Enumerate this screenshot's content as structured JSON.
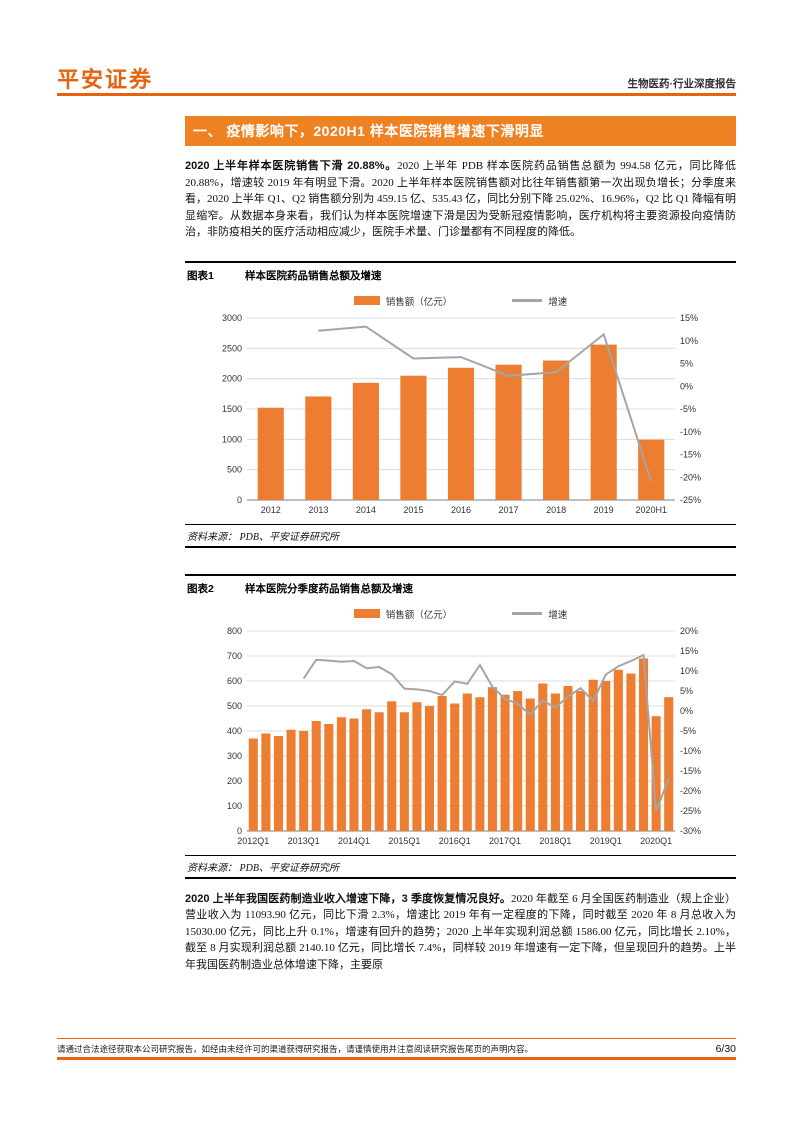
{
  "header": {
    "logo": "平安证券",
    "report_type": "生物医药·行业深度报告"
  },
  "section_title": "一、  疫情影响下，2020H1 样本医院销售增速下滑明显",
  "para1": {
    "lead": "2020 上半年样本医院销售下滑 20.88%。",
    "body": "2020 上半年 PDB 样本医院药品销售总额为 994.58 亿元，同比降低 20.88%，增速较 2019 年有明显下滑。2020 上半年样本医院销售额对比往年销售额第一次出现负增长；分季度来看，2020 上半年 Q1、Q2 销售额分别为 459.15 亿、535.43 亿，同比分别下降 25.02%、16.96%，Q2 比 Q1 降幅有明显缩窄。从数据本身来看，我们认为样本医院增速下滑是因为受新冠疫情影响，医疗机构将主要资源投向疫情防治，非防疫相关的医疗活动相应减少，医院手术量、门诊量都有不同程度的降低。"
  },
  "figure1": {
    "label": "图表1",
    "title": "样本医院药品销售总额及增速",
    "source": "资料来源： PDB、平安证券研究所"
  },
  "figure2": {
    "label": "图表2",
    "title": "样本医院分季度药品销售总额及增速",
    "source": "资料来源： PDB、平安证券研究所"
  },
  "para2": {
    "lead": "2020 上半年我国医药制造业收入增速下降，3 季度恢复情况良好。",
    "body": "2020 年截至 6 月全国医药制造业（规上企业）营业收入为 11093.90 亿元，同比下滑 2.3%，增速比 2019 年有一定程度的下降，同时截至 2020 年 8 月总收入为 15030.00 亿元，同比上升 0.1%，增速有回升的趋势；2020 上半年实现利润总额 1586.00 亿元，同比增长 2.10%，截至 8 月实现利润总额 2140.10 亿元，同比增长 7.4%，同样较 2019 年增速有一定下降，但呈现回升的趋势。上半年我国医药制造业总体增速下降，主要原"
  },
  "footer": {
    "disclaimer": "请通过合法途径获取本公司研究报告，如经由未经许可的渠道获得研究报告，请谨慎使用并注意阅读研究报告尾页的声明内容。",
    "page_number": "6/30"
  },
  "colors": {
    "brand_orange": "#E8610C",
    "title_bar_bg": "#EE8122",
    "bar_orange": "#ED7D31",
    "line_gray": "#A5A5A5",
    "grid_gray": "#DCDCDC",
    "axis_dark": "#7F7F7F"
  },
  "chart_data": [
    {
      "type": "bar",
      "title": "样本医院药品销售总额及增速",
      "categories": [
        "2012",
        "2013",
        "2014",
        "2015",
        "2016",
        "2017",
        "2018",
        "2019",
        "2020H1"
      ],
      "series": [
        {
          "name": "销售额（亿元）",
          "type": "bar",
          "axis": "left",
          "values": [
            1521,
            1707,
            1931,
            2049,
            2180,
            2231,
            2299,
            2561,
            994.58
          ]
        },
        {
          "name": "增速",
          "type": "line",
          "axis": "right",
          "values": [
            null,
            12.2,
            13.1,
            6.1,
            6.4,
            2.3,
            3.1,
            11.4,
            -20.88
          ]
        }
      ],
      "left_axis": {
        "min": 0,
        "max": 3000,
        "step": 500
      },
      "right_axis": {
        "min": -25,
        "max": 15,
        "step": 5,
        "suffix": "%"
      },
      "legend_position": "top",
      "grid": true,
      "label_every": 1,
      "bar_width": 0.55
    },
    {
      "type": "bar",
      "title": "样本医院分季度药品销售总额及增速",
      "categories": [
        "2012Q1",
        "2012Q2",
        "2012Q3",
        "2012Q4",
        "2013Q1",
        "2013Q2",
        "2013Q3",
        "2013Q4",
        "2014Q1",
        "2014Q2",
        "2014Q3",
        "2014Q4",
        "2015Q1",
        "2015Q2",
        "2015Q3",
        "2015Q4",
        "2016Q1",
        "2016Q2",
        "2016Q3",
        "2016Q4",
        "2017Q1",
        "2017Q2",
        "2017Q3",
        "2017Q4",
        "2018Q1",
        "2018Q2",
        "2018Q3",
        "2018Q4",
        "2019Q1",
        "2019Q2",
        "2019Q3",
        "2019Q4",
        "2020Q1",
        "2020Q2"
      ],
      "series": [
        {
          "name": "销售额（亿元）",
          "type": "bar",
          "axis": "left",
          "values": [
            370,
            390,
            380,
            405,
            400,
            440,
            428,
            455,
            450,
            487,
            475,
            519,
            475,
            515,
            500,
            540,
            510,
            550,
            535,
            575,
            545,
            560,
            530,
            590,
            550,
            580,
            560,
            605,
            600,
            645,
            630,
            690,
            459.15,
            535.43
          ]
        },
        {
          "name": "增速",
          "type": "line",
          "axis": "right",
          "values": [
            null,
            null,
            null,
            null,
            8.1,
            12.8,
            12.6,
            12.3,
            12.5,
            10.7,
            11.0,
            9.2,
            5.6,
            5.4,
            5.0,
            4.0,
            7.4,
            6.8,
            11.5,
            6.0,
            3.0,
            1.8,
            -0.9,
            2.6,
            0.9,
            3.6,
            5.7,
            2.5,
            9.1,
            11.2,
            12.5,
            14.0,
            -25.02,
            -16.96
          ]
        }
      ],
      "left_axis": {
        "min": 0,
        "max": 800,
        "step": 100
      },
      "right_axis": {
        "min": -30,
        "max": 20,
        "step": 5,
        "suffix": "%"
      },
      "legend_position": "top",
      "grid": true,
      "label_every": 4,
      "bar_width": 0.72
    }
  ]
}
